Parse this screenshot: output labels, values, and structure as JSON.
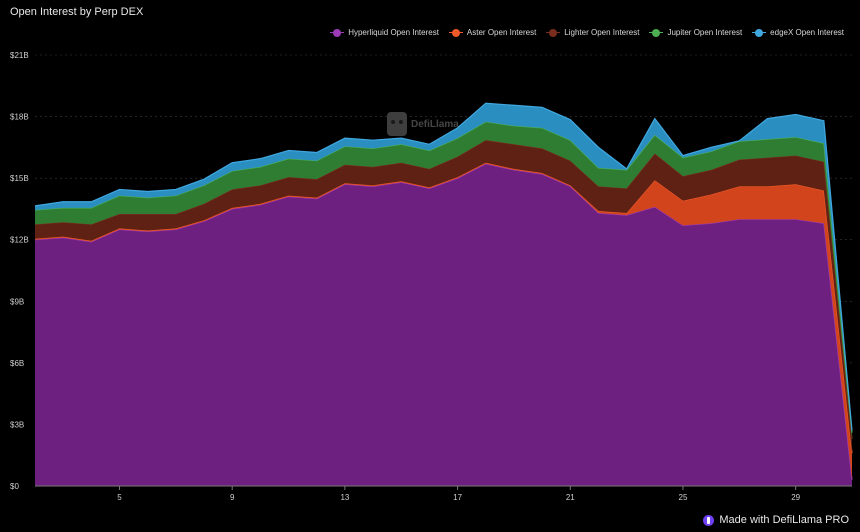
{
  "title": "Open Interest by Perp DEX",
  "watermark": "DefiLlama",
  "badge": "Made with DefiLlama PRO",
  "colors": {
    "background": "#000000",
    "grid": "#3a3a3a",
    "axis": "#7a7a7a"
  },
  "chart_data": {
    "type": "area",
    "stacked": true,
    "title": "Open Interest by Perp DEX",
    "xlabel": "",
    "ylabel": "",
    "x": [
      2,
      3,
      4,
      5,
      6,
      7,
      8,
      9,
      10,
      11,
      12,
      13,
      14,
      15,
      16,
      17,
      18,
      19,
      20,
      21,
      22,
      23,
      24,
      25,
      26,
      27,
      28,
      29,
      30,
      31
    ],
    "xlim": [
      2,
      31
    ],
    "xticks": [
      "5",
      "9",
      "13",
      "17",
      "21",
      "25",
      "29"
    ],
    "xtick_values": [
      5,
      9,
      13,
      17,
      21,
      25,
      29
    ],
    "ylim": [
      0,
      21
    ],
    "yticks": [
      "$0",
      "$3B",
      "$6B",
      "$9B",
      "$12B",
      "$15B",
      "$18B",
      "$21B"
    ],
    "ytick_values": [
      0,
      3,
      6,
      9,
      12,
      15,
      18,
      21
    ],
    "legend_position": "top-right",
    "grid": "horizontal",
    "series": [
      {
        "name": "Hyperliquid Open Interest",
        "color": "#6e2080",
        "line": "#9b3bb5",
        "values": [
          12.0,
          12.1,
          11.9,
          12.5,
          12.4,
          12.5,
          12.9,
          13.5,
          13.7,
          14.1,
          14.0,
          14.7,
          14.6,
          14.8,
          14.5,
          15.0,
          15.7,
          15.4,
          15.2,
          14.6,
          13.3,
          13.2,
          13.6,
          12.7,
          12.8,
          13.0,
          13.0,
          13.0,
          12.8,
          0.3
        ]
      },
      {
        "name": "Aster Open Interest",
        "color": "#d2441c",
        "line": "#f05a28",
        "values": [
          0.05,
          0.05,
          0.05,
          0.05,
          0.05,
          0.05,
          0.05,
          0.05,
          0.05,
          0.05,
          0.05,
          0.05,
          0.05,
          0.05,
          0.05,
          0.05,
          0.05,
          0.05,
          0.05,
          0.05,
          0.1,
          0.1,
          1.3,
          1.2,
          1.4,
          1.6,
          1.6,
          1.7,
          1.6,
          1.3
        ]
      },
      {
        "name": "Lighter Open Interest",
        "color": "#5e2114",
        "line": "#7a2d1c",
        "values": [
          0.7,
          0.7,
          0.8,
          0.7,
          0.8,
          0.7,
          0.8,
          0.9,
          0.9,
          0.9,
          0.9,
          0.9,
          0.9,
          0.9,
          0.9,
          1.0,
          1.1,
          1.2,
          1.2,
          1.2,
          1.2,
          1.2,
          1.3,
          1.2,
          1.2,
          1.3,
          1.4,
          1.4,
          1.4,
          0.7
        ]
      },
      {
        "name": "Jupiter Open Interest",
        "color": "#2e7d32",
        "line": "#4caf50",
        "values": [
          0.7,
          0.7,
          0.8,
          0.9,
          0.8,
          0.9,
          0.9,
          0.9,
          0.9,
          0.9,
          0.9,
          0.9,
          0.9,
          0.9,
          0.9,
          0.9,
          0.9,
          0.9,
          1.0,
          1.0,
          0.9,
          0.9,
          0.9,
          0.9,
          0.9,
          0.9,
          0.9,
          0.9,
          0.9,
          0.3
        ]
      },
      {
        "name": "edgeX Open Interest",
        "color": "#2a8fc0",
        "line": "#40a8e0",
        "values": [
          0.2,
          0.3,
          0.3,
          0.3,
          0.3,
          0.3,
          0.3,
          0.4,
          0.4,
          0.4,
          0.4,
          0.4,
          0.4,
          0.3,
          0.3,
          0.5,
          0.9,
          1.0,
          1.0,
          1.0,
          1.0,
          0.05,
          0.8,
          0.1,
          0.2,
          0.02,
          1.0,
          1.1,
          1.1,
          0.1
        ]
      }
    ]
  }
}
